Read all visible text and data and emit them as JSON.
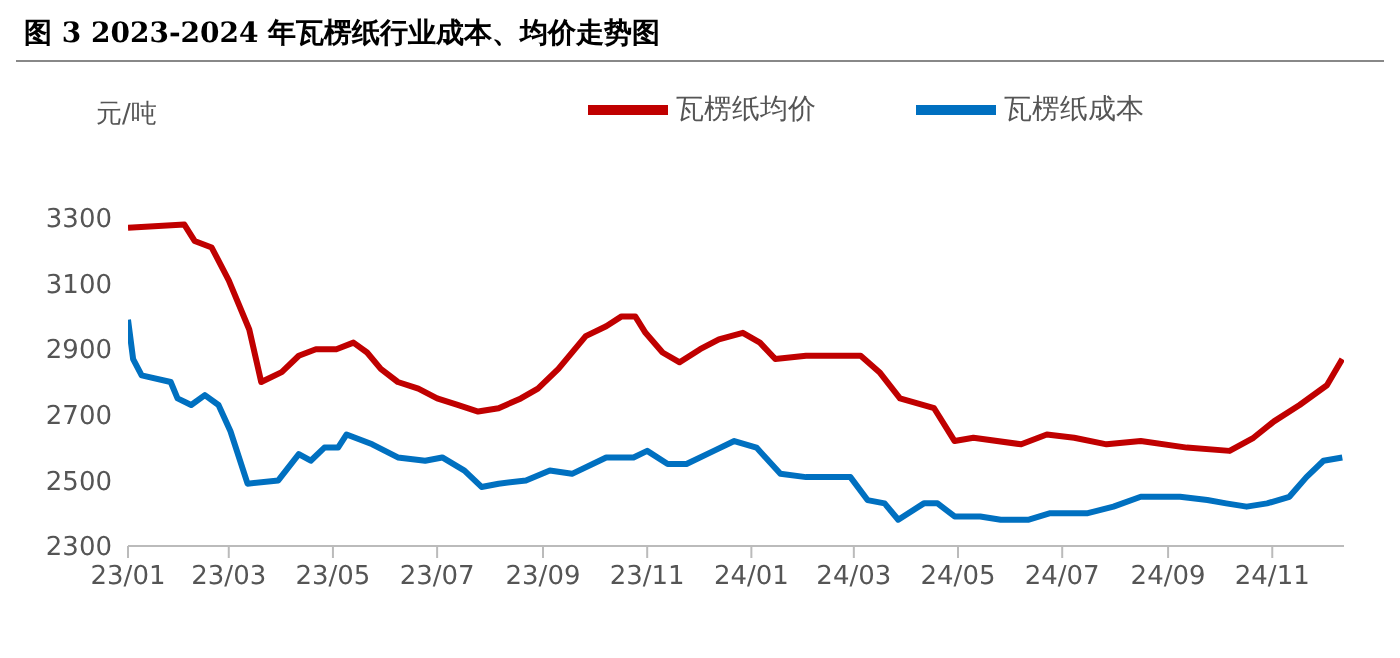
{
  "chart_data": {
    "type": "line",
    "title": "图 3 2023-2024 年瓦楞纸行业成本、均价走势图",
    "ylabel": "元/吨",
    "xlim": [
      "2023-01-01",
      "2024-12-13"
    ],
    "xticks": [
      {
        "value": "2023-01-01",
        "label": "23/01"
      },
      {
        "value": "2023-03-01",
        "label": "23/03"
      },
      {
        "value": "2023-05-01",
        "label": "23/05"
      },
      {
        "value": "2023-07-01",
        "label": "23/07"
      },
      {
        "value": "2023-09-01",
        "label": "23/09"
      },
      {
        "value": "2023-11-01",
        "label": "23/11"
      },
      {
        "value": "2024-01-01",
        "label": "24/01"
      },
      {
        "value": "2024-03-01",
        "label": "24/03"
      },
      {
        "value": "2024-05-01",
        "label": "24/05"
      },
      {
        "value": "2024-07-01",
        "label": "24/07"
      },
      {
        "value": "2024-09-01",
        "label": "24/09"
      },
      {
        "value": "2024-11-01",
        "label": "24/11"
      }
    ],
    "ylim": [
      2300,
      3300
    ],
    "yticks": [
      2300,
      2500,
      2700,
      2900,
      3100,
      3300
    ],
    "grid": false,
    "legend": "top",
    "marker": "none",
    "line_style": "solid",
    "series": [
      {
        "name": "瓦楞纸成本",
        "color": "#0070c0",
        "x": [
          "2023-01-01",
          "2023-01-04",
          "2023-01-09",
          "2023-01-26",
          "2023-01-30",
          "2023-02-07",
          "2023-02-15",
          "2023-02-23",
          "2023-03-02",
          "2023-03-12",
          "2023-03-30",
          "2023-04-11",
          "2023-04-18",
          "2023-04-26",
          "2023-05-04",
          "2023-05-09",
          "2023-05-24",
          "2023-06-08",
          "2023-06-24",
          "2023-07-04",
          "2023-07-17",
          "2023-07-27",
          "2023-08-06",
          "2023-08-22",
          "2023-09-05",
          "2023-09-18",
          "2023-10-08",
          "2023-10-24",
          "2023-11-01",
          "2023-11-13",
          "2023-11-24",
          "2023-12-10",
          "2023-12-22",
          "2024-01-04",
          "2024-01-18",
          "2024-02-02",
          "2024-02-28",
          "2024-03-09",
          "2024-03-19",
          "2024-03-27",
          "2024-04-11",
          "2024-04-19",
          "2024-04-29",
          "2024-05-14",
          "2024-05-26",
          "2024-06-11",
          "2024-06-24",
          "2024-07-16",
          "2024-07-31",
          "2024-08-16",
          "2024-09-08",
          "2024-09-24",
          "2024-10-05",
          "2024-10-17",
          "2024-10-29",
          "2024-11-11",
          "2024-11-21",
          "2024-12-01",
          "2024-12-12"
        ],
        "values": [
          2990,
          2870,
          2820,
          2800,
          2750,
          2730,
          2760,
          2730,
          2650,
          2490,
          2500,
          2580,
          2560,
          2600,
          2600,
          2640,
          2610,
          2570,
          2560,
          2570,
          2530,
          2480,
          2490,
          2500,
          2530,
          2520,
          2570,
          2570,
          2590,
          2550,
          2550,
          2590,
          2620,
          2600,
          2520,
          2510,
          2510,
          2440,
          2430,
          2380,
          2430,
          2430,
          2390,
          2390,
          2380,
          2380,
          2400,
          2400,
          2420,
          2450,
          2450,
          2440,
          2430,
          2420,
          2430,
          2450,
          2510,
          2560,
          2570
        ]
      },
      {
        "name": "瓦楞纸均价",
        "color": "#c00000",
        "x": [
          "2023-01-01",
          "2023-02-03",
          "2023-02-09",
          "2023-02-19",
          "2023-03-01",
          "2023-03-13",
          "2023-03-20",
          "2023-04-01",
          "2023-04-11",
          "2023-04-21",
          "2023-05-03",
          "2023-05-13",
          "2023-05-21",
          "2023-05-29",
          "2023-06-08",
          "2023-06-20",
          "2023-07-01",
          "2023-07-13",
          "2023-07-25",
          "2023-08-06",
          "2023-08-19",
          "2023-08-29",
          "2023-09-10",
          "2023-09-26",
          "2023-10-08",
          "2023-10-17",
          "2023-10-25",
          "2023-10-31",
          "2023-11-10",
          "2023-11-20",
          "2023-12-02",
          "2023-12-13",
          "2023-12-27",
          "2024-01-06",
          "2024-01-15",
          "2024-02-02",
          "2024-03-05",
          "2024-03-16",
          "2024-03-28",
          "2024-04-17",
          "2024-04-29",
          "2024-05-10",
          "2024-06-07",
          "2024-06-22",
          "2024-07-08",
          "2024-07-27",
          "2024-08-16",
          "2024-09-12",
          "2024-10-07",
          "2024-10-21",
          "2024-11-02",
          "2024-11-17",
          "2024-12-03",
          "2024-12-12"
        ],
        "values": [
          3270,
          3280,
          3230,
          3210,
          3110,
          2960,
          2800,
          2830,
          2880,
          2900,
          2900,
          2920,
          2890,
          2840,
          2800,
          2780,
          2750,
          2730,
          2710,
          2720,
          2750,
          2780,
          2840,
          2940,
          2970,
          3000,
          3000,
          2950,
          2890,
          2860,
          2900,
          2930,
          2950,
          2920,
          2870,
          2880,
          2880,
          2830,
          2750,
          2720,
          2620,
          2630,
          2610,
          2640,
          2630,
          2610,
          2620,
          2600,
          2590,
          2630,
          2680,
          2730,
          2790,
          2870
        ]
      }
    ]
  }
}
